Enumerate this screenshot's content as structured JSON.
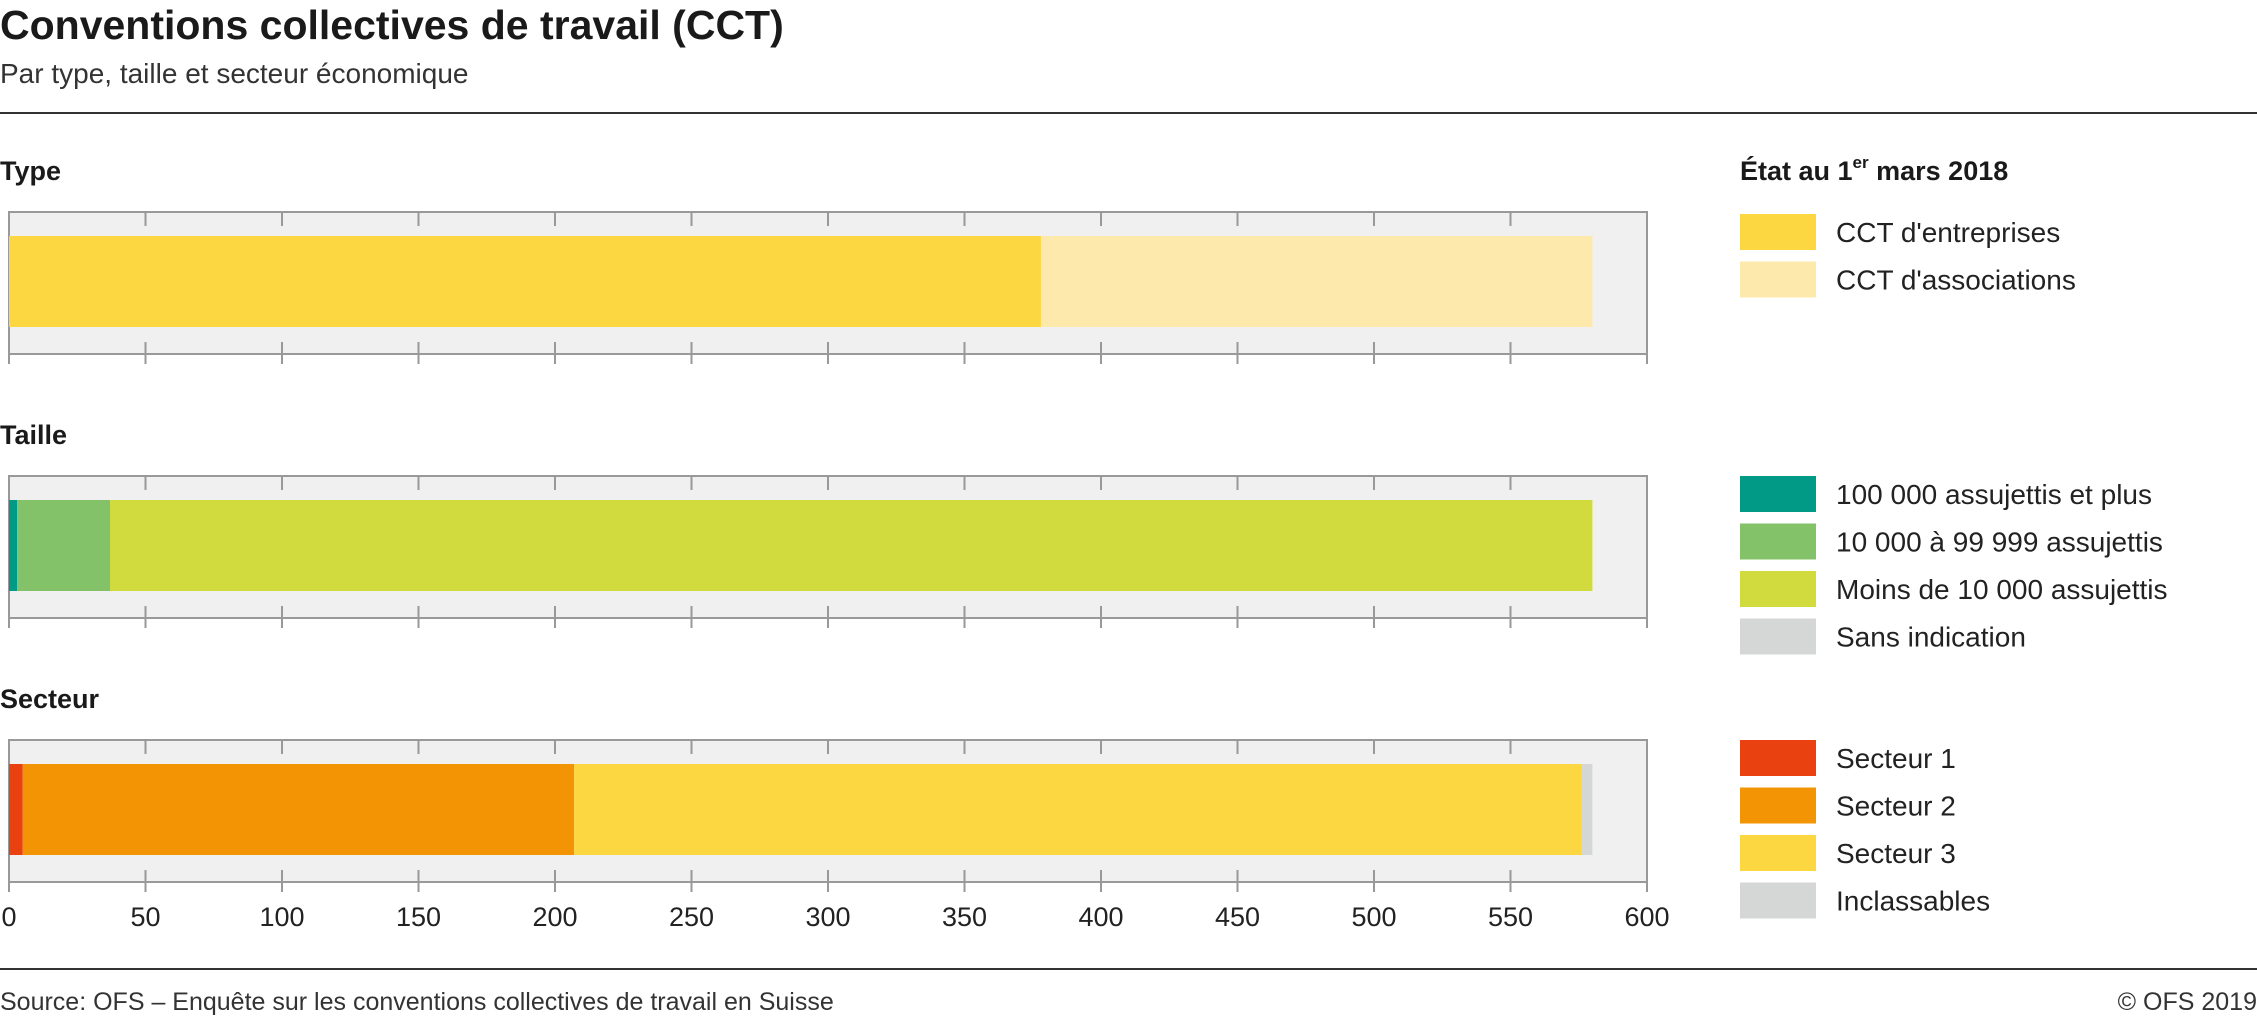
{
  "title": "Conventions collectives de travail (CCT)",
  "subtitle": "Par type, taille et secteur économique",
  "footer": {
    "source": "Source: OFS – Enquête sur les conventions collectives de travail en Suisse",
    "copyright": "© OFS 2019"
  },
  "legend": {
    "title_prefix": "État au 1",
    "title_sup": "er",
    "title_suffix": " mars 2018"
  },
  "chart_data": {
    "type": "bar",
    "orientation": "horizontal",
    "stacked": true,
    "xlim": [
      0,
      600
    ],
    "xticks": [
      0,
      50,
      100,
      150,
      200,
      250,
      300,
      350,
      400,
      450,
      500,
      550,
      600
    ],
    "grid": true,
    "legend_position": "right",
    "panels": [
      {
        "title": "Type",
        "series": [
          {
            "name": "CCT d'entreprises",
            "value": 378,
            "color": "#fdd741"
          },
          {
            "name": "CCT d'associations",
            "value": 202,
            "color": "#fde9ac"
          }
        ]
      },
      {
        "title": "Taille",
        "series": [
          {
            "name": "100 000 assujettis et plus",
            "value": 3,
            "color": "#009a86"
          },
          {
            "name": "10 000 à 99 999 assujettis",
            "value": 34,
            "color": "#84c269"
          },
          {
            "name": "Moins de 10 000 assujettis",
            "value": 543,
            "color": "#d2db3d"
          },
          {
            "name": "Sans indication",
            "value": 0,
            "color": "#d5d7d6"
          }
        ]
      },
      {
        "title": "Secteur",
        "series": [
          {
            "name": "Secteur 1",
            "value": 5,
            "color": "#e9410f"
          },
          {
            "name": "Secteur 2",
            "value": 202,
            "color": "#f39404"
          },
          {
            "name": "Secteur 3",
            "value": 369,
            "color": "#fdd741"
          },
          {
            "name": "Inclassables",
            "value": 4,
            "color": "#d5d7d6"
          }
        ]
      }
    ]
  }
}
